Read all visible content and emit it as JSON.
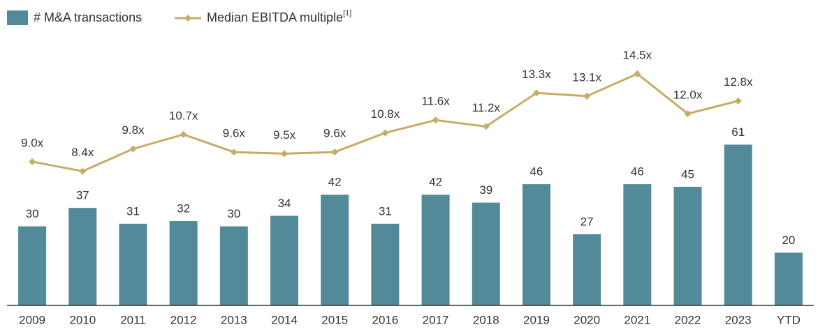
{
  "chart_data": {
    "type": "bar-line",
    "categories": [
      "2009",
      "2010",
      "2011",
      "2012",
      "2013",
      "2014",
      "2015",
      "2016",
      "2017",
      "2018",
      "2019",
      "2020",
      "2021",
      "2022",
      "2023",
      "YTD"
    ],
    "series": [
      {
        "name": "# M&A transactions",
        "type": "bar",
        "color": "#528a99",
        "values": [
          30,
          37,
          31,
          32,
          30,
          34,
          42,
          31,
          42,
          39,
          46,
          27,
          46,
          45,
          61,
          20
        ]
      },
      {
        "name": "Median EBITDA multiple",
        "name_footnote": "[1]",
        "type": "line",
        "axis": "y2",
        "color": "#c8ac65",
        "values": [
          9.0,
          8.4,
          9.8,
          10.7,
          9.6,
          9.5,
          9.6,
          10.8,
          11.6,
          11.2,
          13.3,
          13.1,
          14.5,
          12.0,
          12.8,
          null
        ],
        "value_labels": [
          "9.0x",
          "8.4x",
          "9.8x",
          "10.7x",
          "9.6x",
          "9.5x",
          "9.6x",
          "10.8x",
          "11.6x",
          "11.2x",
          "13.3x",
          "13.1x",
          "14.5x",
          "12.0x",
          "12.8x",
          null
        ]
      }
    ],
    "ylim": [
      0,
      100
    ],
    "y2lim": [
      0,
      16.5
    ]
  }
}
